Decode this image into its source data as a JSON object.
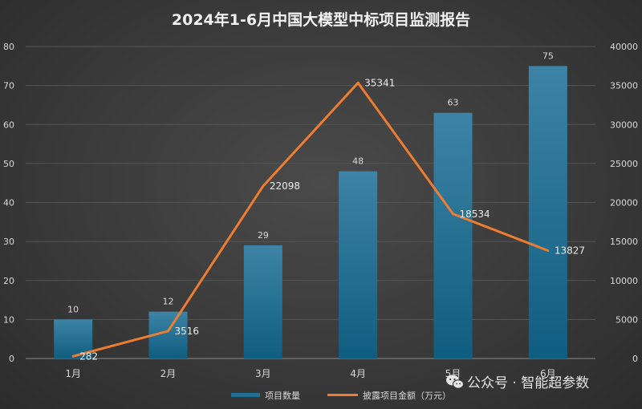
{
  "chart_data": {
    "type": "bar+line",
    "title": "2024年1-6月中国大模型中标项目监测报告",
    "categories": [
      "1月",
      "2月",
      "3月",
      "4月",
      "5月",
      "6月"
    ],
    "series": [
      {
        "name": "项目数量",
        "type": "bar",
        "axis": "left",
        "values": [
          10,
          12,
          29,
          48,
          63,
          75
        ],
        "color": "#1f6f95"
      },
      {
        "name": "披露项目金额（万元）",
        "type": "line",
        "axis": "right",
        "values": [
          282,
          3516,
          22098,
          35341,
          18534,
          13827
        ],
        "color": "#ed7d31"
      }
    ],
    "y_left": {
      "min": 0,
      "max": 80,
      "step": 10,
      "ticks": [
        "0",
        "10",
        "20",
        "30",
        "40",
        "50",
        "60",
        "70",
        "80"
      ]
    },
    "y_right": {
      "min": 0,
      "max": 40000,
      "step": 5000,
      "ticks": [
        "0",
        "5000",
        "10000",
        "15000",
        "20000",
        "25000",
        "30000",
        "35000",
        "40000"
      ]
    },
    "bar_labels": [
      "10",
      "12",
      "29",
      "48",
      "63",
      "75"
    ],
    "line_labels": [
      "282",
      "3516",
      "22098",
      "35341",
      "18534",
      "13827"
    ],
    "grid": true,
    "legend_position": "bottom"
  },
  "watermark": {
    "text": "公众号 · 智能超参数",
    "icon": "wechat-icon"
  }
}
